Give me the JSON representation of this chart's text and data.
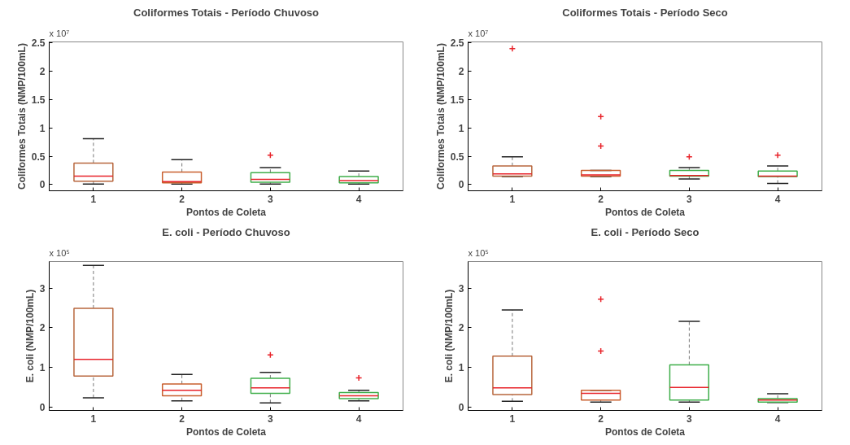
{
  "chart_data": [
    {
      "type": "box",
      "title": "Coliformes Totais - Período Chuvoso",
      "xlabel": "Pontos de Coleta",
      "ylabel": "Coliformes Totais (NMP/100mL)",
      "annotations": [
        "x 10⁷"
      ],
      "categories": [
        "1",
        "2",
        "3",
        "4"
      ],
      "colors": [
        "#b8673e",
        "#c9602f",
        "#3fae4a",
        "#3fae4a"
      ],
      "ylim": [
        -0.11,
        2.52
      ],
      "yticks": [
        0,
        0.5,
        1,
        1.5,
        2,
        2.5
      ],
      "boxes": [
        {
          "low": 0.01,
          "q1": 0.06,
          "median": 0.15,
          "q3": 0.38,
          "high": 0.81
        },
        {
          "low": 0.01,
          "q1": 0.03,
          "median": 0.05,
          "q3": 0.22,
          "high": 0.44
        },
        {
          "low": 0.01,
          "q1": 0.04,
          "median": 0.09,
          "q3": 0.21,
          "high": 0.3,
          "outliers": [
            0.52
          ]
        },
        {
          "low": 0.01,
          "q1": 0.03,
          "median": 0.07,
          "q3": 0.14,
          "high": 0.24
        }
      ]
    },
    {
      "type": "box",
      "title": "Coliformes Totais - Período Seco",
      "xlabel": "Pontos de Coleta",
      "ylabel": "Coliformes Totais (NMP/100mL)",
      "annotations": [
        "x 10⁷"
      ],
      "categories": [
        "1",
        "2",
        "3",
        "4"
      ],
      "colors": [
        "#b8673e",
        "#c9602f",
        "#3fae4a",
        "#3fae4a"
      ],
      "ylim": [
        -0.11,
        2.52
      ],
      "yticks": [
        0,
        0.5,
        1,
        1.5,
        2,
        2.5
      ],
      "boxes": [
        {
          "low": 0.14,
          "q1": 0.15,
          "median": 0.19,
          "q3": 0.33,
          "high": 0.49,
          "outliers": [
            2.4
          ]
        },
        {
          "low": 0.14,
          "q1": 0.15,
          "median": 0.17,
          "q3": 0.25,
          "high": 0.25,
          "outliers": [
            1.2,
            0.68
          ]
        },
        {
          "low": 0.1,
          "q1": 0.15,
          "median": 0.16,
          "q3": 0.25,
          "high": 0.3,
          "outliers": [
            0.49
          ]
        },
        {
          "low": 0.02,
          "q1": 0.14,
          "median": 0.15,
          "q3": 0.24,
          "high": 0.33,
          "outliers": [
            0.52
          ]
        }
      ]
    },
    {
      "type": "box",
      "title": "E. coli - Período Chuvoso",
      "xlabel": "Pontos de Coleta",
      "ylabel": "E. coli (NMP/100mL)",
      "annotations": [
        "x 10⁵"
      ],
      "categories": [
        "1",
        "2",
        "3",
        "4"
      ],
      "colors": [
        "#b8673e",
        "#c9602f",
        "#3fae4a",
        "#3fae4a"
      ],
      "ylim": [
        -0.09,
        3.67
      ],
      "yticks": [
        0,
        1,
        2,
        3
      ],
      "boxes": [
        {
          "low": 0.23,
          "q1": 0.78,
          "median": 1.2,
          "q3": 2.49,
          "high": 3.57
        },
        {
          "low": 0.15,
          "q1": 0.28,
          "median": 0.42,
          "q3": 0.58,
          "high": 0.82
        },
        {
          "low": 0.1,
          "q1": 0.34,
          "median": 0.48,
          "q3": 0.72,
          "high": 0.87,
          "outliers": [
            1.31
          ]
        },
        {
          "low": 0.15,
          "q1": 0.21,
          "median": 0.28,
          "q3": 0.36,
          "high": 0.42,
          "outliers": [
            0.73
          ]
        }
      ]
    },
    {
      "type": "box",
      "title": "E. coli - Período Seco",
      "xlabel": "Pontos de Coleta",
      "ylabel": "E. coli (NMP/100mL)",
      "annotations": [
        "x 10⁵"
      ],
      "categories": [
        "1",
        "2",
        "3",
        "4"
      ],
      "colors": [
        "#b8673e",
        "#c9602f",
        "#3fae4a",
        "#3fae4a"
      ],
      "ylim": [
        -0.09,
        3.67
      ],
      "yticks": [
        0,
        1,
        2,
        3
      ],
      "boxes": [
        {
          "low": 0.14,
          "q1": 0.31,
          "median": 0.48,
          "q3": 1.28,
          "high": 2.45
        },
        {
          "low": 0.12,
          "q1": 0.17,
          "median": 0.34,
          "q3": 0.42,
          "high": 0.42,
          "outliers": [
            2.72,
            1.41
          ]
        },
        {
          "low": 0.12,
          "q1": 0.17,
          "median": 0.49,
          "q3": 1.06,
          "high": 2.16
        },
        {
          "low": 0.11,
          "q1": 0.12,
          "median": 0.17,
          "q3": 0.21,
          "high": 0.33
        }
      ]
    }
  ]
}
